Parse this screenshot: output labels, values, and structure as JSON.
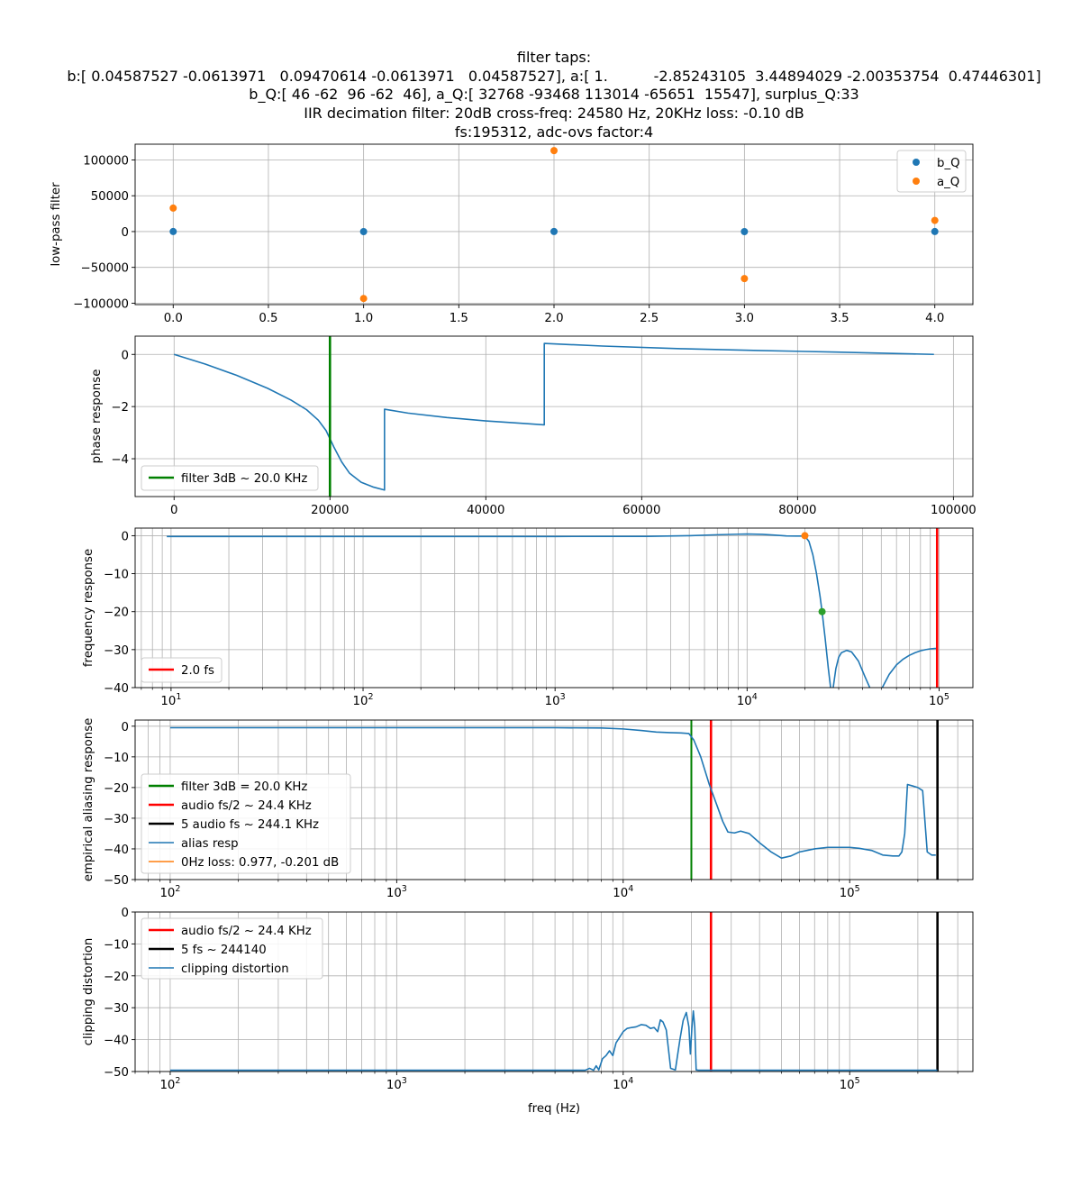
{
  "figure": {
    "title_lines": [
      "filter taps:",
      "b:[ 0.04587527 -0.0613971   0.09470614 -0.0613971   0.04587527], a:[ 1.          -2.85243105  3.44894029 -2.00353754  0.47446301]",
      "b_Q:[ 46 -62  96 -62  46], a_Q:[ 32768 -93468 113014 -65651  15547], surplus_Q:33",
      "IIR decimation filter: 20dB cross-freq: 24580 Hz, 20KHz loss: -0.10 dB",
      "fs:195312, adc-ovs factor:4"
    ],
    "colors": {
      "blue": "#1f77b4",
      "orange": "#ff7f0e",
      "green_marker": "#2ca02c",
      "green_line": "#008000",
      "red": "#ff0000",
      "black": "#000000",
      "grid": "#b0b0b0"
    }
  },
  "chart_data": [
    {
      "type": "scatter",
      "ylabel": "low-pass filter",
      "xlabel": "",
      "xlim": [
        -0.2,
        4.2
      ],
      "ylim": [
        -102000,
        122000
      ],
      "xticks": [
        0.0,
        0.5,
        1.0,
        1.5,
        2.0,
        2.5,
        3.0,
        3.5,
        4.0
      ],
      "xtick_labels": [
        "0.0",
        "0.5",
        "1.0",
        "1.5",
        "2.0",
        "2.5",
        "3.0",
        "3.5",
        "4.0"
      ],
      "yticks": [
        -100000,
        -50000,
        0,
        50000,
        100000
      ],
      "ytick_labels": [
        "−100000",
        "−50000",
        "0",
        "50000",
        "100000"
      ],
      "grid": true,
      "legend_position": "upper-right",
      "series": [
        {
          "name": "b_Q",
          "color": "#1f77b4",
          "x": [
            0,
            1,
            2,
            3,
            4
          ],
          "y": [
            46,
            -62,
            96,
            -62,
            46
          ]
        },
        {
          "name": "a_Q",
          "color": "#ff7f0e",
          "x": [
            0,
            1,
            2,
            3,
            4
          ],
          "y": [
            32768,
            -93468,
            113014,
            -65651,
            15547
          ]
        }
      ]
    },
    {
      "type": "line",
      "ylabel": "phase response",
      "xlabel": "",
      "xlim": [
        -5000,
        102500
      ],
      "ylim": [
        -5.45,
        0.7
      ],
      "xticks": [
        0,
        20000,
        40000,
        60000,
        80000,
        100000
      ],
      "xtick_labels": [
        "0",
        "20000",
        "40000",
        "60000",
        "80000",
        "100000"
      ],
      "yticks": [
        -4,
        -2,
        0
      ],
      "ytick_labels": [
        "−4",
        "−2",
        "0"
      ],
      "grid": true,
      "legend_position": "lower-left",
      "series": [
        {
          "name": "",
          "color": "#1f77b4",
          "x": [
            0,
            4000,
            8000,
            12000,
            15000,
            17000,
            18500,
            19500,
            20500,
            21500,
            22500,
            24000,
            25500,
            27000,
            27000.1,
            30000,
            35000,
            40000,
            45000,
            47500,
            47500.1,
            55000,
            65000,
            75000,
            85000,
            97500
          ],
          "y": [
            0,
            -0.37,
            -0.8,
            -1.3,
            -1.75,
            -2.12,
            -2.52,
            -2.92,
            -3.55,
            -4.12,
            -4.55,
            -4.9,
            -5.08,
            -5.2,
            -2.1,
            -2.25,
            -2.42,
            -2.55,
            -2.65,
            -2.7,
            0.42,
            0.32,
            0.22,
            0.15,
            0.09,
            0.0
          ]
        },
        {
          "name": "filter 3dB ~ 20.0 KHz",
          "color": "#008000",
          "vline": 20000
        }
      ]
    },
    {
      "type": "line",
      "ylabel": "frequency response",
      "xlabel": "",
      "xscale": "log",
      "xlim": [
        6.5,
        150000
      ],
      "ylim": [
        -40,
        2
      ],
      "xticks": [
        10,
        100,
        1000,
        10000,
        100000
      ],
      "xtick_labels": [
        "10^1",
        "10^2",
        "10^3",
        "10^4",
        "10^5"
      ],
      "yticks": [
        -40,
        -30,
        -20,
        -10,
        0
      ],
      "ytick_labels": [
        "−40",
        "−30",
        "−20",
        "−10",
        "0"
      ],
      "grid": true,
      "legend_position": "lower-left",
      "series": [
        {
          "name": "",
          "color": "#1f77b4",
          "x": [
            9.5,
            100,
            1000,
            3000,
            5000,
            7000,
            9000,
            10000,
            12000,
            14000,
            16000,
            18000,
            20000,
            21000,
            22000,
            23000,
            24000,
            24580,
            25500,
            26500,
            27300,
            28000,
            29000,
            30000,
            31000,
            33000,
            35000,
            38000,
            41000,
            44000,
            46000,
            47000,
            50000,
            55000,
            60000,
            65000,
            70000,
            75000,
            80000,
            85000,
            90000,
            95000,
            97600
          ],
          "y": [
            -0.2,
            -0.2,
            -0.2,
            -0.18,
            0.0,
            0.25,
            0.4,
            0.45,
            0.35,
            0.15,
            -0.05,
            -0.1,
            -0.1,
            -1.5,
            -5,
            -10,
            -16,
            -20,
            -27,
            -35,
            -40.5,
            -40.5,
            -35,
            -32,
            -30.8,
            -30.2,
            -30.6,
            -33,
            -37,
            -40.5,
            -41,
            -41,
            -40.5,
            -36.5,
            -34,
            -32.5,
            -31.5,
            -30.8,
            -30.3,
            -30,
            -29.8,
            -29.7,
            -29.7
          ]
        },
        {
          "name": "",
          "color": "#ff7f0e",
          "points_x": [
            20000
          ],
          "points_y": [
            0
          ]
        },
        {
          "name": "",
          "color": "#2ca02c",
          "points_x": [
            24580
          ],
          "points_y": [
            -20
          ]
        },
        {
          "name": "2.0 fs",
          "color": "#ff0000",
          "vline": 97656
        }
      ]
    },
    {
      "type": "line",
      "ylabel": "empirical aliasing response",
      "xlabel": "",
      "xscale": "log",
      "xlim": [
        70,
        350000
      ],
      "ylim": [
        -50,
        2
      ],
      "xticks": [
        100,
        1000,
        10000,
        100000
      ],
      "xtick_labels": [
        "10^2",
        "10^3",
        "10^4",
        "10^5"
      ],
      "yticks": [
        -50,
        -40,
        -30,
        -20,
        -10,
        0
      ],
      "ytick_labels": [
        "−50",
        "−40",
        "−30",
        "−20",
        "−10",
        "0"
      ],
      "grid": true,
      "legend_position": "lower-left",
      "series": [
        {
          "name": "filter 3dB = 20.0 KHz",
          "color": "#008000",
          "vline": 20000
        },
        {
          "name": "audio fs/2 ~ 24.4 KHz",
          "color": "#ff0000",
          "vline": 24414
        },
        {
          "name": "5 audio fs ~ 244.1 KHz",
          "color": "#000000",
          "vline": 244140
        },
        {
          "name": "alias resp",
          "color": "#1f77b4",
          "x": [
            100,
            1000,
            5000,
            8000,
            10000,
            12000,
            14000,
            16000,
            18000,
            19500,
            20500,
            22000,
            24000,
            26000,
            27500,
            29000,
            31000,
            33000,
            36000,
            40000,
            45000,
            50000,
            55000,
            60000,
            70000,
            80000,
            90000,
            100000,
            110000,
            125000,
            140000,
            155000,
            165000,
            170000,
            175000,
            180000,
            190000,
            200000,
            210000,
            220000,
            230000,
            240000
          ],
          "y": [
            -0.5,
            -0.5,
            -0.5,
            -0.6,
            -0.9,
            -1.4,
            -1.9,
            -2.1,
            -2.2,
            -2.4,
            -4.5,
            -10,
            -19,
            -26,
            -31,
            -34.5,
            -34.8,
            -34.2,
            -35,
            -38,
            -41,
            -43,
            -42.3,
            -41,
            -40,
            -39.5,
            -39.5,
            -39.5,
            -39.8,
            -40.5,
            -42,
            -42.3,
            -42.3,
            -41,
            -35,
            -19,
            -19.5,
            -20,
            -21,
            -41,
            -42,
            -42
          ]
        },
        {
          "name": "0Hz loss: 0.977, -0.201 dB",
          "color": "#ff7f0e",
          "legend_only": true
        }
      ]
    },
    {
      "type": "line",
      "ylabel": "clipping distortion",
      "xlabel": "freq (Hz)",
      "xscale": "log",
      "xlim": [
        70,
        350000
      ],
      "ylim": [
        -50,
        0
      ],
      "xticks": [
        100,
        1000,
        10000,
        100000
      ],
      "xtick_labels": [
        "10^2",
        "10^3",
        "10^4",
        "10^5"
      ],
      "yticks": [
        -50,
        -40,
        -30,
        -20,
        -10,
        0
      ],
      "ytick_labels": [
        "−50",
        "−40",
        "−30",
        "−20",
        "−10",
        "0"
      ],
      "grid": true,
      "legend_position": "upper-left",
      "series": [
        {
          "name": "audio fs/2 ~ 24.4 KHz",
          "color": "#ff0000",
          "vline": 24414
        },
        {
          "name": "5 fs ~ 244140",
          "color": "#000000",
          "vline": 244140
        },
        {
          "name": "clipping distortion",
          "color": "#1f77b4",
          "x": [
            100,
            1000,
            5000,
            6800,
            7100,
            7400,
            7600,
            7800,
            8100,
            8400,
            8700,
            9000,
            9300,
            9600,
            10000,
            10400,
            10900,
            11400,
            12000,
            12600,
            13200,
            13700,
            14200,
            14600,
            15000,
            15500,
            16200,
            17000,
            17800,
            18400,
            19000,
            19500,
            19800,
            20100,
            20400,
            20700,
            21000,
            21500,
            22500,
            24000,
            25000,
            50000,
            100000,
            200000,
            244000
          ],
          "y": [
            -49.6,
            -49.6,
            -49.6,
            -49.6,
            -49.0,
            -49.6,
            -48.2,
            -49.5,
            -46,
            -45,
            -43.5,
            -45,
            -41,
            -39.5,
            -37.5,
            -36.5,
            -36.2,
            -36,
            -35.3,
            -35.5,
            -36.5,
            -36.2,
            -37.5,
            -33.8,
            -34.5,
            -37,
            -49,
            -49.5,
            -40,
            -34,
            -31.5,
            -36,
            -44.5,
            -36.5,
            -31,
            -36,
            -49.5,
            -49.6,
            -49.6,
            -49.6,
            -49.6,
            -49.6,
            -49.6,
            -49.6,
            -49.6
          ]
        }
      ]
    }
  ]
}
